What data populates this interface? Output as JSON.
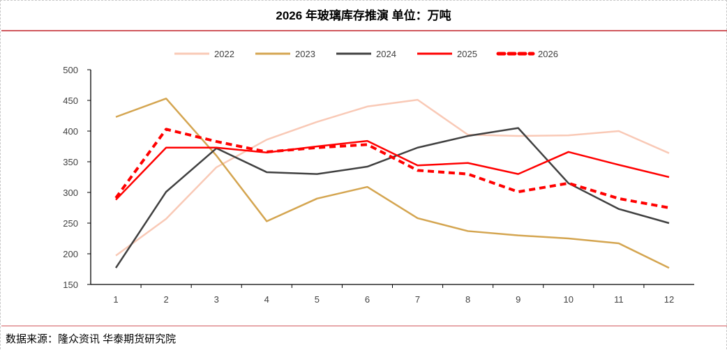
{
  "title": "2026 年玻璃库存推演    单位：万吨",
  "source": "数据来源：隆众资讯  华泰期货研究院",
  "chart_data": {
    "type": "line",
    "title": "2026 年玻璃库存推演    单位：万吨",
    "xlabel": "",
    "ylabel": "",
    "categories": [
      "1",
      "2",
      "3",
      "4",
      "5",
      "6",
      "7",
      "8",
      "9",
      "10",
      "11",
      "12"
    ],
    "ylim": [
      150,
      500
    ],
    "yticks": [
      150,
      200,
      250,
      300,
      350,
      400,
      450,
      500
    ],
    "grid": false,
    "legend_placement": "top",
    "series": [
      {
        "name": "2022",
        "color": "#f9c9b6",
        "dash": false,
        "values": [
          197,
          257,
          341,
          386,
          415,
          440,
          451,
          394,
          392,
          393,
          400,
          364
        ]
      },
      {
        "name": "2023",
        "color": "#d4a550",
        "dash": false,
        "values": [
          423,
          453,
          360,
          253,
          290,
          309,
          258,
          237,
          230,
          225,
          217,
          177
        ]
      },
      {
        "name": "2024",
        "color": "#404040",
        "dash": false,
        "values": [
          177,
          301,
          372,
          333,
          330,
          342,
          373,
          392,
          405,
          315,
          273,
          250
        ]
      },
      {
        "name": "2025",
        "color": "#ff0000",
        "dash": false,
        "values": [
          288,
          373,
          373,
          365,
          375,
          384,
          344,
          348,
          330,
          366,
          345,
          325
        ]
      },
      {
        "name": "2026",
        "color": "#ff0000",
        "dash": true,
        "values": [
          291,
          403,
          383,
          366,
          373,
          378,
          336,
          330,
          301,
          315,
          290,
          275
        ]
      }
    ]
  }
}
